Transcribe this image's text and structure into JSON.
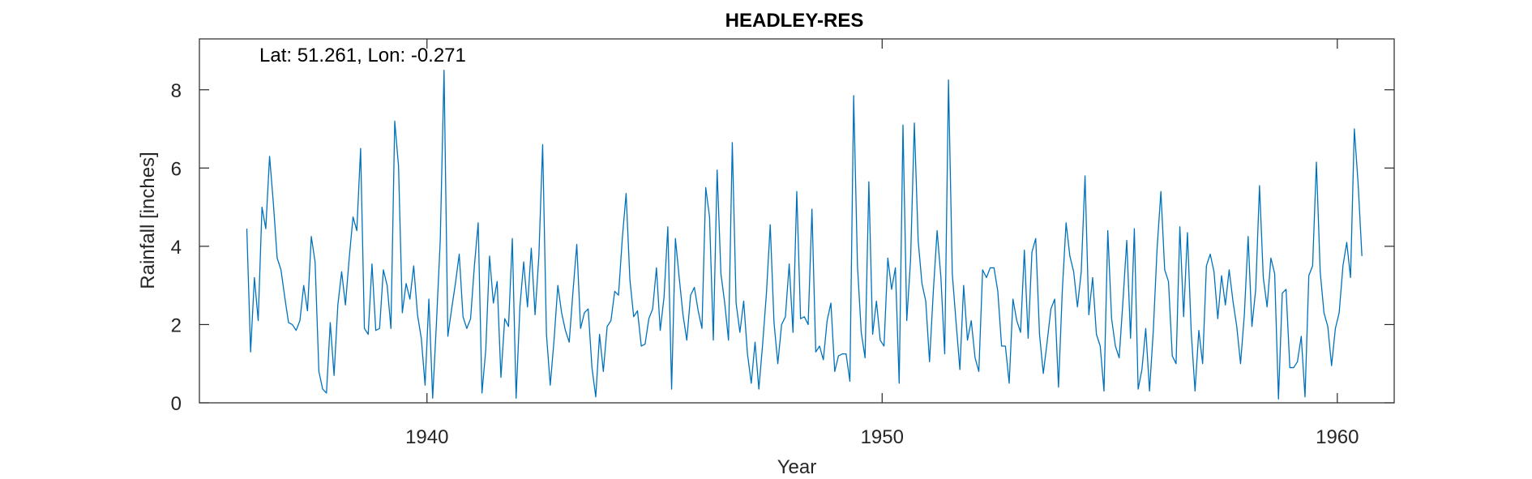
{
  "chart_data": {
    "type": "line",
    "title": "HEADLEY-RES",
    "annotation": "Lat: 51.261, Lon: -0.271",
    "xlabel": "Year",
    "ylabel": "Rainfall [inches]",
    "xlim": [
      1935.0,
      1961.25
    ],
    "ylim": [
      0,
      9.3
    ],
    "xticks": [
      1940,
      1950,
      1960
    ],
    "yticks": [
      0,
      2,
      4,
      6,
      8
    ],
    "grid": false,
    "legend": "none",
    "line_color": "#0072BD",
    "series": [
      {
        "x_start": 1936.0417,
        "x_step": 0.08333,
        "values": [
          4.45,
          1.3,
          3.2,
          2.1,
          5.0,
          4.45,
          6.3,
          5.1,
          3.7,
          3.4,
          2.7,
          2.05,
          2.0,
          1.85,
          2.1,
          3.0,
          2.35,
          4.25,
          3.6,
          0.8,
          0.35,
          0.25,
          2.05,
          0.7,
          2.5,
          3.35,
          2.5,
          3.7,
          4.75,
          4.4,
          6.5,
          1.9,
          1.75,
          3.55,
          1.85,
          1.9,
          3.4,
          3.0,
          1.9,
          7.2,
          6.05,
          2.3,
          3.05,
          2.65,
          3.5,
          2.25,
          1.65,
          0.45,
          2.65,
          0.12,
          2.05,
          4.15,
          8.5,
          1.7,
          2.4,
          3.05,
          3.8,
          2.2,
          1.9,
          2.15,
          3.5,
          4.6,
          0.25,
          1.35,
          3.75,
          2.55,
          3.1,
          0.65,
          2.15,
          1.95,
          4.2,
          0.12,
          2.45,
          3.6,
          2.45,
          3.95,
          2.25,
          3.75,
          6.6,
          1.75,
          0.45,
          1.6,
          3.0,
          2.3,
          1.85,
          1.55,
          2.85,
          4.05,
          1.9,
          2.3,
          2.4,
          0.9,
          0.15,
          1.75,
          0.8,
          1.95,
          2.1,
          2.85,
          2.75,
          4.2,
          5.35,
          3.15,
          2.2,
          2.35,
          1.45,
          1.5,
          2.15,
          2.4,
          3.45,
          1.85,
          2.7,
          4.5,
          0.35,
          4.2,
          3.2,
          2.25,
          1.6,
          2.75,
          2.95,
          2.35,
          1.9,
          5.5,
          4.75,
          1.6,
          5.95,
          3.3,
          2.55,
          1.6,
          6.65,
          2.55,
          1.8,
          2.6,
          1.25,
          0.5,
          1.55,
          0.35,
          1.5,
          2.8,
          4.55,
          2.05,
          1.0,
          2.0,
          2.2,
          3.55,
          1.8,
          5.4,
          2.15,
          2.2,
          2.0,
          4.95,
          1.3,
          1.45,
          1.1,
          2.1,
          2.55,
          0.8,
          1.2,
          1.25,
          1.25,
          0.55,
          7.85,
          3.5,
          1.8,
          1.15,
          5.65,
          1.75,
          2.6,
          1.6,
          1.45,
          3.7,
          2.9,
          3.45,
          0.5,
          7.1,
          2.1,
          3.65,
          7.15,
          4.15,
          3.05,
          2.6,
          1.05,
          2.85,
          4.4,
          3.2,
          1.25,
          8.25,
          3.3,
          2.05,
          0.85,
          3.0,
          1.6,
          2.1,
          1.15,
          0.8,
          3.4,
          3.2,
          3.45,
          3.45,
          2.85,
          1.45,
          1.45,
          0.5,
          2.65,
          2.1,
          1.8,
          3.9,
          1.65,
          3.85,
          4.2,
          1.75,
          0.75,
          1.55,
          2.4,
          2.65,
          0.4,
          2.85,
          4.6,
          3.75,
          3.35,
          2.45,
          3.35,
          5.8,
          2.25,
          3.2,
          1.75,
          1.45,
          0.3,
          4.4,
          2.15,
          1.45,
          1.15,
          2.6,
          4.15,
          1.65,
          4.45,
          0.35,
          0.85,
          1.9,
          0.3,
          1.85,
          3.95,
          5.4,
          3.4,
          3.1,
          1.2,
          1.0,
          4.5,
          2.2,
          4.35,
          1.8,
          0.3,
          1.85,
          1.0,
          3.5,
          3.8,
          3.35,
          2.15,
          3.25,
          2.5,
          3.4,
          2.6,
          1.95,
          1.0,
          2.25,
          4.25,
          1.95,
          2.9,
          5.55,
          3.2,
          2.45,
          3.7,
          3.3,
          0.1,
          2.8,
          2.9,
          0.9,
          0.9,
          1.05,
          1.7,
          0.15,
          3.25,
          3.5,
          6.15,
          3.35,
          2.3,
          1.95,
          0.95,
          1.9,
          2.3,
          3.5,
          4.1,
          3.2,
          7.0,
          5.6,
          3.75
        ]
      }
    ]
  }
}
